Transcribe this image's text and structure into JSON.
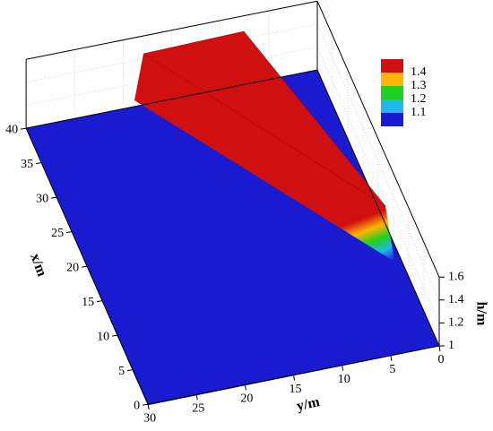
{
  "chart_data": {
    "type": "surface",
    "xlabel": "x/m",
    "ylabel": "y/m",
    "zlabel": "h/m",
    "xlim": [
      0,
      40
    ],
    "xticks": [
      0,
      5,
      10,
      15,
      20,
      25,
      30,
      35,
      40
    ],
    "ylim": [
      0,
      30
    ],
    "yticks": [
      0,
      5,
      10,
      15,
      20,
      25,
      30
    ],
    "zlim": [
      1,
      1.6
    ],
    "zticks": [
      1,
      1.2,
      1.4,
      1.6
    ],
    "legend": {
      "levels": [
        1.1,
        1.2,
        1.3,
        1.4
      ],
      "colors": [
        "#1a1ad0",
        "#20b8e8",
        "#20d020",
        "#ffb400",
        "#d01010"
      ]
    }
  }
}
